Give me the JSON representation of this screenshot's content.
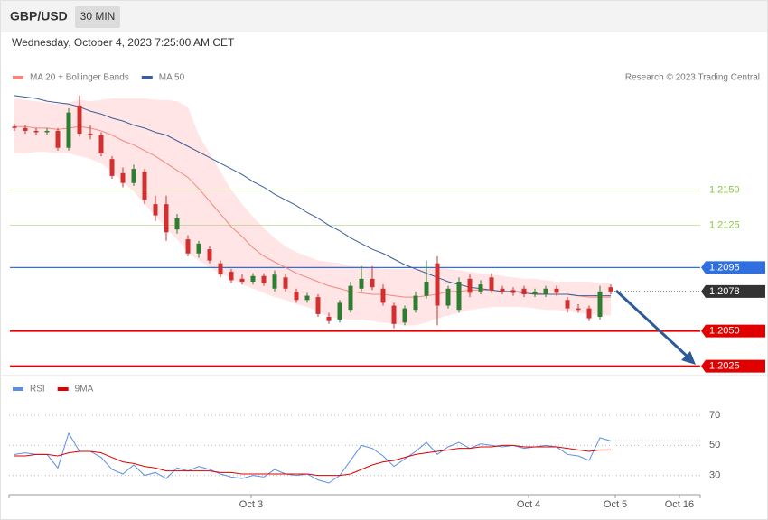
{
  "header": {
    "symbol": "GBP/USD",
    "interval": "30 MIN",
    "date": "Wednesday, October 4, 2023 7:25:00 AM CET"
  },
  "chart_data": [
    {
      "type": "candlestick",
      "credit": "Research © 2023 Trading Central",
      "x": [
        0,
        1,
        2,
        3,
        4,
        5,
        6,
        7,
        8,
        9,
        10,
        11,
        12,
        13,
        14,
        15,
        16,
        17,
        18,
        19,
        20,
        21,
        22,
        23,
        24,
        25,
        26,
        27,
        28,
        29,
        30,
        31,
        32,
        33,
        34,
        35,
        36,
        37,
        38,
        39,
        40,
        41,
        42,
        43,
        44,
        45,
        46,
        47,
        48,
        49,
        50,
        51,
        52,
        53,
        54,
        55
      ],
      "xlim": [
        -0.5,
        63.25
      ],
      "ylim": [
        1.2019,
        1.2224
      ],
      "up_color": "#2e7d32",
      "down_color": "#d32f2f",
      "open": [
        1.2195,
        1.2194,
        1.2192,
        1.2191,
        1.2192,
        1.218,
        1.221,
        1.219,
        1.2189,
        1.2172,
        1.2162,
        1.2155,
        1.2163,
        1.214,
        1.214,
        1.2122,
        1.2115,
        1.2105,
        1.2108,
        1.2098,
        1.2092,
        1.2087,
        1.2085,
        1.2089,
        1.208,
        1.2088,
        1.2078,
        1.2072,
        1.2074,
        1.206,
        1.2058,
        1.2065,
        1.208,
        1.2087,
        1.208,
        1.2068,
        1.2056,
        1.2065,
        1.2075,
        1.2098,
        1.2068,
        1.2065,
        1.2087,
        1.2078,
        1.2088,
        1.208,
        1.2079,
        1.208,
        1.2076,
        1.2076,
        1.208,
        1.2072,
        1.2066,
        1.2066,
        1.206,
        1.2081
      ],
      "high": [
        1.2197,
        1.2196,
        1.2194,
        1.2194,
        1.2194,
        1.2208,
        1.2217,
        1.2196,
        1.2191,
        1.2174,
        1.2166,
        1.2168,
        1.2165,
        1.2146,
        1.2146,
        1.2133,
        1.2118,
        1.2114,
        1.211,
        1.21,
        1.2094,
        1.209,
        1.2091,
        1.2091,
        1.2093,
        1.209,
        1.208,
        1.2077,
        1.2076,
        1.2063,
        1.2072,
        1.2085,
        1.2096,
        1.2096,
        1.2083,
        1.207,
        1.2068,
        1.2078,
        1.21,
        1.2103,
        1.2082,
        1.2088,
        1.209,
        1.2086,
        1.2091,
        1.2082,
        1.2081,
        1.2082,
        1.208,
        1.2082,
        1.2082,
        1.2074,
        1.2069,
        1.2068,
        1.2082,
        1.2083
      ],
      "low": [
        1.2192,
        1.219,
        1.2189,
        1.2189,
        1.2178,
        1.2178,
        1.2188,
        1.2186,
        1.2174,
        1.2158,
        1.2152,
        1.2153,
        1.214,
        1.2128,
        1.2114,
        1.2119,
        1.2103,
        1.2102,
        1.2098,
        1.2088,
        1.2084,
        1.2083,
        1.2083,
        1.2082,
        1.2078,
        1.2078,
        1.207,
        1.207,
        1.206,
        1.2055,
        1.2056,
        1.2063,
        1.2078,
        1.2079,
        1.2068,
        1.2052,
        1.2054,
        1.2063,
        1.2073,
        1.2054,
        1.2066,
        1.2063,
        1.2074,
        1.2076,
        1.2077,
        1.2076,
        1.2075,
        1.2074,
        1.2074,
        1.2074,
        1.2075,
        1.2063,
        1.2063,
        1.2057,
        1.2058,
        1.2076
      ],
      "close": [
        1.2194,
        1.2192,
        1.2191,
        1.2192,
        1.218,
        1.2205,
        1.219,
        1.2189,
        1.2176,
        1.216,
        1.2155,
        1.2165,
        1.2143,
        1.2132,
        1.212,
        1.213,
        1.2105,
        1.2112,
        1.21,
        1.209,
        1.2086,
        1.2085,
        1.2089,
        1.2084,
        1.209,
        1.208,
        1.2072,
        1.2075,
        1.2062,
        1.2057,
        1.207,
        1.2082,
        1.2087,
        1.2081,
        1.207,
        1.2055,
        1.2066,
        1.2075,
        1.2085,
        1.2068,
        1.208,
        1.2085,
        1.2077,
        1.2083,
        1.2079,
        1.2078,
        1.2077,
        1.2076,
        1.2078,
        1.208,
        1.2077,
        1.2066,
        1.2065,
        1.2059,
        1.2078,
        1.2078
      ],
      "series": [
        {
          "name": "MA 20 + Bollinger Bands",
          "color": "#f4877f",
          "band_color": "#ffdada",
          "values": [
            1.2195,
            1.2195,
            1.2194,
            1.2194,
            1.2193,
            1.2194,
            1.2195,
            1.2194,
            1.2192,
            1.2189,
            1.2185,
            1.2182,
            1.2178,
            1.2174,
            1.2169,
            1.2164,
            1.2159,
            1.2151,
            1.2142,
            1.2133,
            1.2124,
            1.2117,
            1.2109,
            1.2103,
            1.2099,
            1.2095,
            1.2091,
            1.2088,
            1.2085,
            1.2082,
            1.208,
            1.2078,
            1.2077,
            1.2076,
            1.2076,
            1.2075,
            1.2074,
            1.2074,
            1.2075,
            1.2076,
            1.2078,
            1.2078,
            1.2079,
            1.2079,
            1.2079,
            1.2078,
            1.2078,
            1.2078,
            1.2077,
            1.2076,
            1.2076,
            1.2076,
            1.2075,
            1.2074,
            1.2074,
            1.2074
          ],
          "upper": [
            1.2215,
            1.2214,
            1.2213,
            1.2212,
            1.2211,
            1.2212,
            1.2214,
            1.2213,
            1.2214,
            1.2215,
            1.2215,
            1.2215,
            1.2215,
            1.2214,
            1.2214,
            1.2213,
            1.2209,
            1.2189,
            1.2176,
            1.2163,
            1.215,
            1.214,
            1.2131,
            1.2123,
            1.2116,
            1.211,
            1.2106,
            1.2103,
            1.21,
            1.2099,
            1.2098,
            1.2096,
            1.2096,
            1.2095,
            1.2094,
            1.2094,
            1.2094,
            1.2094,
            1.2094,
            1.2095,
            1.2094,
            1.2093,
            1.2092,
            1.2091,
            1.209,
            1.2089,
            1.2088,
            1.2087,
            1.2087,
            1.2086,
            1.2085,
            1.2085,
            1.2085,
            1.2085,
            1.2084,
            1.2084
          ],
          "lower": [
            1.2176,
            1.2176,
            1.2177,
            1.2177,
            1.2176,
            1.2176,
            1.2174,
            1.2172,
            1.2169,
            1.2163,
            1.2156,
            1.2149,
            1.214,
            1.2132,
            1.2123,
            1.2115,
            1.2106,
            1.21,
            1.2095,
            1.2091,
            1.2087,
            1.2083,
            1.208,
            1.2077,
            1.2074,
            1.2072,
            1.2069,
            1.2067,
            1.2064,
            1.206,
            1.2059,
            1.2058,
            1.2058,
            1.2057,
            1.2056,
            1.2055,
            1.2054,
            1.2054,
            1.2056,
            1.2059,
            1.2061,
            1.2063,
            1.2065,
            1.2066,
            1.2067,
            1.2067,
            1.2067,
            1.2067,
            1.2066,
            1.2065,
            1.2065,
            1.2064,
            1.2063,
            1.2062,
            1.2061,
            1.2061
          ]
        },
        {
          "name": "MA 50",
          "color": "#3b5e99",
          "values": [
            1.2217,
            1.2216,
            1.2215,
            1.2213,
            1.2212,
            1.2211,
            1.2209,
            1.2206,
            1.2204,
            1.2201,
            1.2199,
            1.2196,
            1.2194,
            1.2191,
            1.2189,
            1.2185,
            1.2181,
            1.2177,
            1.2173,
            1.2169,
            1.2165,
            1.2161,
            1.2156,
            1.2152,
            1.2147,
            1.2143,
            1.2139,
            1.2134,
            1.213,
            1.2125,
            1.2121,
            1.2116,
            1.2112,
            1.2108,
            1.2105,
            1.2101,
            1.2097,
            1.2094,
            1.2091,
            1.2088,
            1.2085,
            1.2083,
            1.2081,
            1.208,
            1.2079,
            1.2078,
            1.2078,
            1.2077,
            1.2076,
            1.2076,
            1.2076,
            1.2076,
            1.2075,
            1.2075,
            1.2075,
            1.2075
          ]
        }
      ],
      "levels": [
        {
          "value": 1.215,
          "label": "1.2150",
          "color": "#8bc34a",
          "style": "text"
        },
        {
          "value": 1.2125,
          "label": "1.2125",
          "color": "#8bc34a",
          "style": "text"
        },
        {
          "value": 1.2095,
          "label": "1.2095",
          "color": "#2f6fe0",
          "style": "box"
        },
        {
          "value": 1.2078,
          "label": "1.2078",
          "color": "#333333",
          "style": "dotted"
        },
        {
          "value": 1.205,
          "label": "1.2050",
          "color": "#e00000",
          "style": "box"
        },
        {
          "value": 1.2025,
          "label": "1.2025",
          "color": "#e00000",
          "style": "box"
        }
      ]
    },
    {
      "type": "line",
      "x": [
        0,
        1,
        2,
        3,
        4,
        5,
        6,
        7,
        8,
        9,
        10,
        11,
        12,
        13,
        14,
        15,
        16,
        17,
        18,
        19,
        20,
        21,
        22,
        23,
        24,
        25,
        26,
        27,
        28,
        29,
        30,
        31,
        32,
        33,
        34,
        35,
        36,
        37,
        38,
        39,
        40,
        41,
        42,
        43,
        44,
        45,
        46,
        47,
        48,
        49,
        50,
        51,
        52,
        53,
        54,
        55
      ],
      "xlim": [
        -0.5,
        63.25
      ],
      "xticks": [
        {
          "value": 21.83,
          "label": "Oct 3"
        },
        {
          "value": 47.42,
          "label": "Oct 4"
        },
        {
          "value": 55.42,
          "label": "Oct 5"
        },
        {
          "value": 61.33,
          "label": "Oct 16"
        }
      ],
      "ylim": [
        19,
        82
      ],
      "yticks": [
        30,
        50,
        70
      ],
      "grid": true,
      "series": [
        {
          "name": "RSI",
          "color": "#5b8ee6",
          "values": [
            44,
            45,
            44,
            44,
            35,
            58,
            46,
            46,
            42,
            34,
            31,
            37,
            30,
            32,
            28,
            35,
            33,
            36,
            34,
            31,
            29,
            28,
            30,
            29,
            34,
            31,
            30,
            31,
            27,
            25,
            30,
            40,
            50,
            48,
            43,
            36,
            41,
            46,
            52,
            44,
            49,
            52,
            48,
            51,
            50,
            49,
            50,
            48,
            49,
            50,
            49,
            44,
            43,
            40,
            55,
            53
          ]
        },
        {
          "name": "9MA",
          "color": "#e00000",
          "values": [
            43,
            43,
            44,
            44,
            43,
            45,
            46,
            46,
            45,
            42,
            39,
            38,
            36,
            35,
            33,
            33,
            33,
            33,
            33,
            32,
            32,
            31,
            31,
            31,
            31,
            31,
            31,
            31,
            30,
            30,
            30,
            31,
            34,
            37,
            39,
            40,
            42,
            44,
            45,
            46,
            47,
            48,
            48,
            49,
            49,
            50,
            50,
            49,
            49,
            49,
            49,
            48,
            47,
            46,
            47,
            47
          ]
        }
      ]
    }
  ]
}
